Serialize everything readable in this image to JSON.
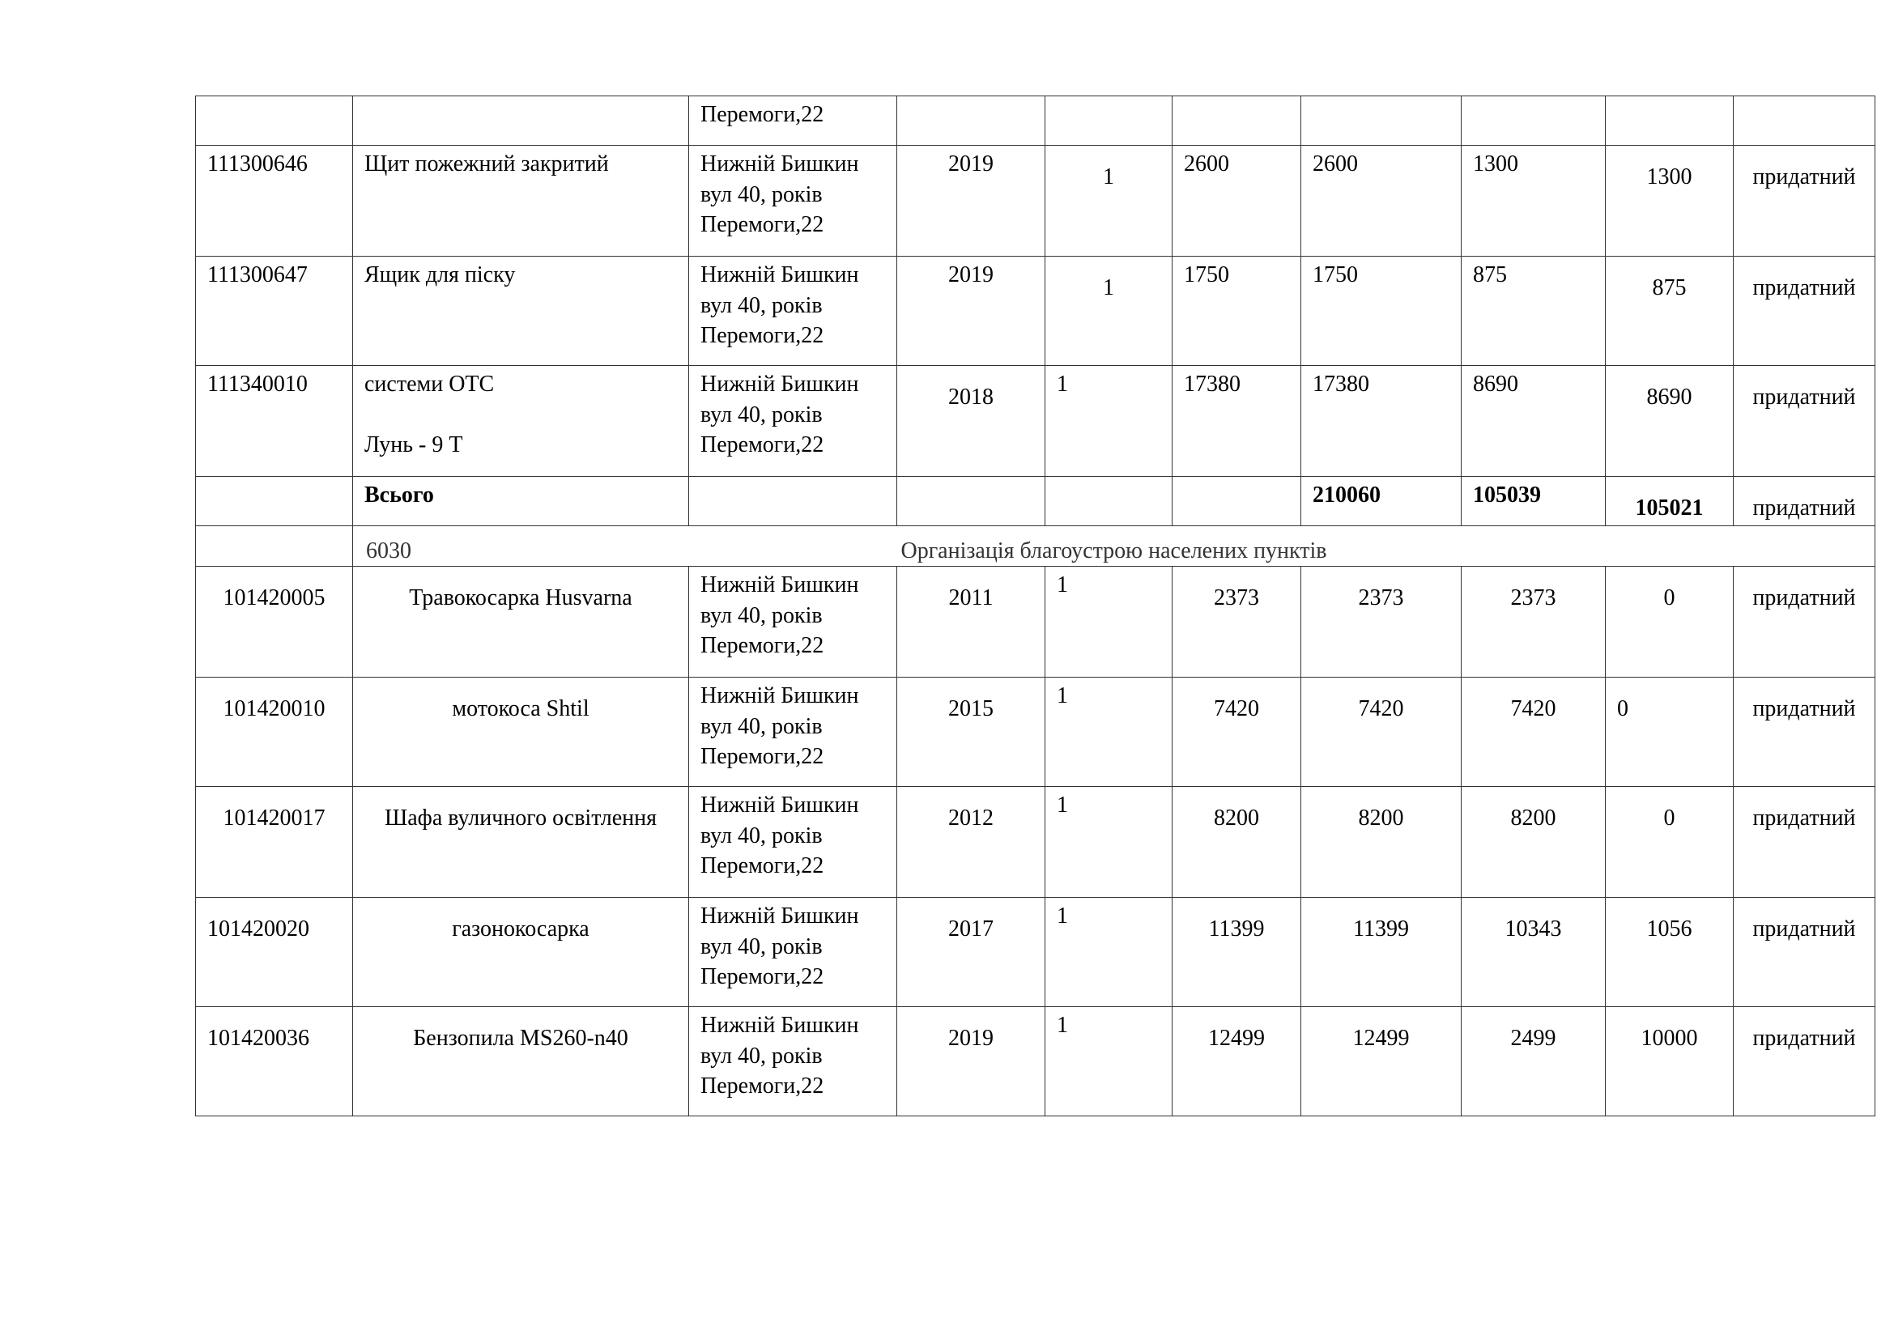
{
  "table": {
    "rows": [
      {
        "cells": [
          "",
          "",
          "Перемоги,22",
          "",
          "",
          "",
          "",
          "",
          "",
          ""
        ]
      },
      {
        "cells": [
          "111300646",
          "Щит пожежний закритий",
          "Нижній Бишкин\nвул 40, років\nПеремоги,22",
          "2019",
          "1",
          "2600",
          "2600",
          "1300",
          "1300",
          "придатний"
        ]
      },
      {
        "cells": [
          "111300647",
          "Ящик для піску",
          "Нижній Бишкин\nвул 40, років\nПеремоги,22",
          "2019",
          "1",
          "1750",
          "1750",
          "875",
          "875",
          "придатний"
        ]
      },
      {
        "cells": [
          "111340010",
          "системи ОТС\n\nЛунь - 9 Т",
          "Нижній Бишкин\nвул 40, років\nПеремоги,22",
          "2018",
          "1",
          "17380",
          "17380",
          "8690",
          "8690",
          "придатний"
        ]
      },
      {
        "cells": [
          "",
          "Всього",
          "",
          "",
          "",
          "",
          "210060",
          "105039",
          "105021",
          "придатний"
        ]
      },
      {
        "section": {
          "code": "6030",
          "title": "Організація благоустрою населених пунктів"
        }
      },
      {
        "cells": [
          "101420005",
          "Травокосарка Husvarna",
          "Нижній Бишкин\nвул 40, років\nПеремоги,22",
          "2011",
          "1",
          "2373",
          "2373",
          "2373",
          "0",
          "придатний"
        ]
      },
      {
        "cells": [
          "101420010",
          "мотокоса Shtil",
          "Нижній Бишкин\nвул 40, років\nПеремоги,22",
          "2015",
          "1",
          "7420",
          "7420",
          "7420",
          "0",
          "придатний"
        ]
      },
      {
        "cells": [
          "101420017",
          "Шафа вуличного освітлення",
          "Нижній Бишкин\nвул 40, років\nПеремоги,22",
          "2012",
          "1",
          "8200",
          "8200",
          "8200",
          "0",
          "придатний"
        ]
      },
      {
        "cells": [
          "101420020",
          "газонокосарка",
          "Нижній Бишкин\nвул 40, років\nПеремоги,22",
          "2017",
          "1",
          "11399",
          "11399",
          "10343",
          "1056",
          "придатний"
        ]
      },
      {
        "cells": [
          "101420036",
          "Бензопила MS260-n40",
          "Нижній Бишкин\nвул 40, років\nПеремоги,22",
          "2019",
          "1",
          "12499",
          "12499",
          "2499",
          "10000",
          "придатний"
        ]
      }
    ]
  }
}
